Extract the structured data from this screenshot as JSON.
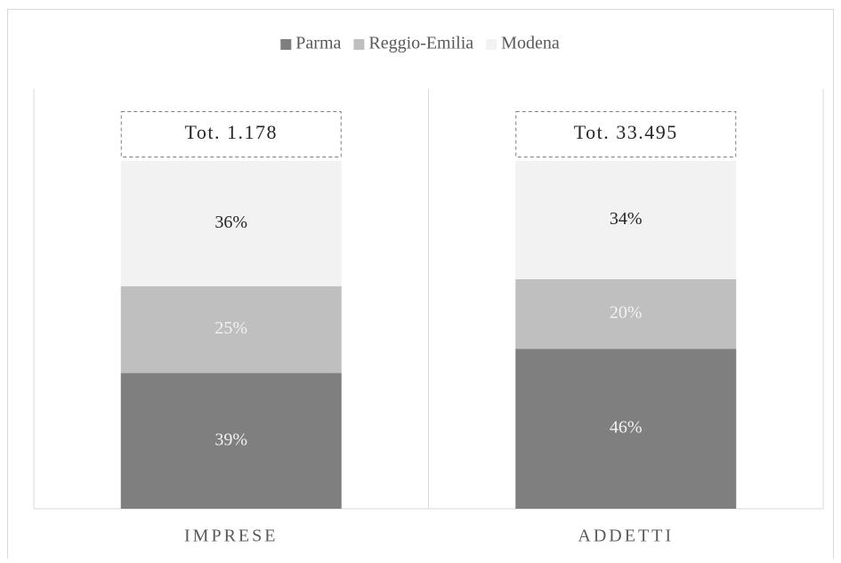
{
  "chart_data": {
    "type": "stacked_bar",
    "categories": [
      "IMPRESE",
      "ADDETTI"
    ],
    "series": [
      {
        "name": "Parma",
        "color": "#7f7f7f",
        "label_color": "#f2f2f2",
        "values": [
          39,
          46
        ],
        "value_labels": [
          "39%",
          "46%"
        ]
      },
      {
        "name": "Reggio-Emilia",
        "color": "#bfbfbf",
        "label_color": "#f2f2f2",
        "values": [
          25,
          20
        ],
        "value_labels": [
          "25%",
          "20%"
        ]
      },
      {
        "name": "Modena",
        "color": "#f2f2f2",
        "label_color": "#262626",
        "values": [
          36,
          34
        ],
        "value_labels": [
          "36%",
          "34%"
        ]
      }
    ],
    "annotations": [
      "Tot. 1.178",
      "Tot. 33.495"
    ],
    "legend": "top"
  }
}
